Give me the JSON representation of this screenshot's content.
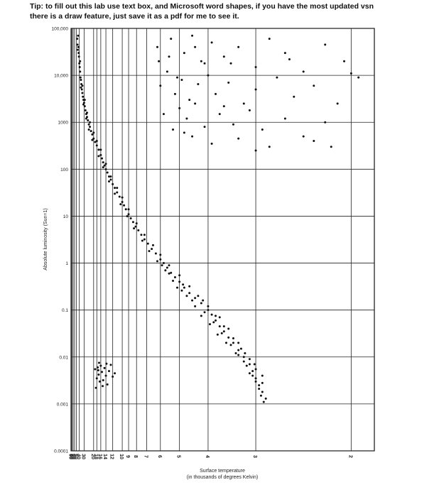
{
  "tip": {
    "line1": "Tip: to fill out this lab use text box, and Microsoft word shapes, if you have the most updated vsn",
    "line2": "there is a draw feature, just save it as a pdf for me to see it."
  },
  "chart_data": {
    "type": "scatter",
    "title": "",
    "ylabel": "Absolute luminosity (Sun=1)",
    "xlabel_line1": "Surface temperature",
    "xlabel_line2": "(in thousands of degrees Kelvin)",
    "y_scale": "log",
    "ylim": [
      0.0001,
      100000
    ],
    "x_scale": "reciprocal (decreasing to the right)",
    "xlim": [
      95,
      1.85
    ],
    "grid": true,
    "y_ticks": [
      {
        "value": 100000,
        "label": "100,000"
      },
      {
        "value": 10000,
        "label": "10,000"
      },
      {
        "value": 1000,
        "label": "1000"
      },
      {
        "value": 100,
        "label": "100"
      },
      {
        "value": 10,
        "label": "10"
      },
      {
        "value": 1,
        "label": "1"
      },
      {
        "value": 0.1,
        "label": "0.1"
      },
      {
        "value": 0.01,
        "label": "0.01"
      },
      {
        "value": 0.001,
        "label": "0.001"
      },
      {
        "value": 0.0001,
        "label": "0.0001"
      }
    ],
    "x_ticks": [
      {
        "value": 90,
        "label": "90"
      },
      {
        "value": 80,
        "label": "80"
      },
      {
        "value": 70,
        "label": "70"
      },
      {
        "value": 60,
        "label": "60"
      },
      {
        "value": 50,
        "label": "50"
      },
      {
        "value": 40,
        "label": "40"
      },
      {
        "value": 30,
        "label": "30"
      },
      {
        "value": 20,
        "label": "20"
      },
      {
        "value": 18,
        "label": "18"
      },
      {
        "value": 16,
        "label": "16"
      },
      {
        "value": 14,
        "label": "14"
      },
      {
        "value": 12,
        "label": "12"
      },
      {
        "value": 10,
        "label": "10"
      },
      {
        "value": 9,
        "label": "9"
      },
      {
        "value": 8,
        "label": "8"
      },
      {
        "value": 7,
        "label": "7"
      },
      {
        "value": 6,
        "label": "6"
      },
      {
        "value": 5,
        "label": "5"
      },
      {
        "value": 4,
        "label": "4"
      },
      {
        "value": 3,
        "label": "3"
      },
      {
        "value": 2,
        "label": "2"
      }
    ],
    "series": [
      {
        "points": [
          [
            47,
            60000
          ],
          [
            46,
            45000
          ],
          [
            45,
            35000
          ],
          [
            44,
            70000
          ],
          [
            42,
            30000
          ],
          [
            41,
            25000
          ],
          [
            40,
            18000
          ],
          [
            39,
            15000
          ],
          [
            38,
            12000
          ],
          [
            37,
            9000
          ],
          [
            36,
            8000
          ],
          [
            35,
            6500
          ],
          [
            34,
            5000
          ],
          [
            33,
            4200
          ],
          [
            32,
            3500
          ],
          [
            31,
            3000
          ],
          [
            30,
            2600
          ],
          [
            29,
            2200
          ],
          [
            28,
            1800
          ],
          [
            27,
            1500
          ],
          [
            26,
            1300
          ],
          [
            25,
            1100
          ],
          [
            24,
            900
          ],
          [
            23,
            800
          ],
          [
            22,
            650
          ],
          [
            21,
            550
          ],
          [
            20,
            450
          ],
          [
            19,
            380
          ],
          [
            18,
            320
          ],
          [
            17,
            260
          ],
          [
            16,
            200
          ],
          [
            15.5,
            170
          ],
          [
            15,
            140
          ],
          [
            14.5,
            120
          ],
          [
            14,
            100
          ],
          [
            13.5,
            85
          ],
          [
            13,
            70
          ],
          [
            12.5,
            60
          ],
          [
            12,
            48
          ],
          [
            11.5,
            40
          ],
          [
            11,
            32
          ],
          [
            10.5,
            26
          ],
          [
            10,
            20
          ],
          [
            9.7,
            17
          ],
          [
            9.4,
            14
          ],
          [
            9,
            11
          ],
          [
            8.7,
            9
          ],
          [
            8.4,
            7.5
          ],
          [
            8.1,
            6
          ],
          [
            7.8,
            5
          ],
          [
            7.5,
            4
          ],
          [
            7.2,
            3.2
          ],
          [
            6.9,
            2.6
          ],
          [
            6.6,
            2
          ],
          [
            6.3,
            1.6
          ],
          [
            6,
            1.2
          ],
          [
            5.8,
            1
          ],
          [
            5.6,
            0.8
          ],
          [
            5.4,
            0.62
          ],
          [
            5.2,
            0.5
          ],
          [
            5,
            0.4
          ],
          [
            4.8,
            0.3
          ],
          [
            4.6,
            0.23
          ],
          [
            4.4,
            0.18
          ],
          [
            4.2,
            0.14
          ],
          [
            4,
            0.1
          ],
          [
            3.9,
            0.08
          ],
          [
            3.8,
            0.06
          ],
          [
            3.7,
            0.045
          ],
          [
            3.6,
            0.035
          ],
          [
            3.5,
            0.026
          ],
          [
            3.4,
            0.02
          ],
          [
            3.3,
            0.014
          ],
          [
            3.2,
            0.01
          ],
          [
            3.1,
            0.007
          ],
          [
            3.05,
            0.005
          ],
          [
            3,
            0.0035
          ],
          [
            2.95,
            0.0025
          ],
          [
            2.9,
            0.0018
          ],
          [
            2.85,
            0.0013
          ],
          [
            43,
            40000
          ],
          [
            38,
            20000
          ],
          [
            33,
            6000
          ],
          [
            29,
            3000
          ],
          [
            26,
            1600
          ],
          [
            23,
            1000
          ],
          [
            20,
            600
          ],
          [
            18,
            400
          ],
          [
            16,
            260
          ],
          [
            14,
            130
          ],
          [
            12.5,
            70
          ],
          [
            11,
            40
          ],
          [
            10,
            25
          ],
          [
            9,
            14
          ],
          [
            8,
            7
          ],
          [
            7.2,
            4
          ],
          [
            6.5,
            2.4
          ],
          [
            6,
            1.5
          ],
          [
            5.5,
            0.9
          ],
          [
            5,
            0.55
          ],
          [
            4.6,
            0.32
          ],
          [
            4.3,
            0.2
          ],
          [
            4,
            0.12
          ],
          [
            3.8,
            0.075
          ],
          [
            3.6,
            0.045
          ],
          [
            3.4,
            0.025
          ],
          [
            3.25,
            0.015
          ],
          [
            3.1,
            0.009
          ],
          [
            3,
            0.0055
          ],
          [
            2.9,
            0.0028
          ],
          [
            36,
            5500
          ],
          [
            31,
            2400
          ],
          [
            27,
            1200
          ],
          [
            24,
            700
          ],
          [
            21,
            420
          ],
          [
            17,
            190
          ],
          [
            15,
            110
          ],
          [
            13,
            55
          ],
          [
            11.5,
            30
          ],
          [
            10.3,
            18
          ],
          [
            9.2,
            10
          ],
          [
            8.3,
            5.5
          ],
          [
            7.4,
            3
          ],
          [
            6.8,
            1.8
          ],
          [
            6.2,
            1.1
          ],
          [
            5.7,
            0.7
          ],
          [
            5.3,
            0.42
          ],
          [
            4.9,
            0.26
          ],
          [
            4.5,
            0.16
          ],
          [
            4.1,
            0.09
          ],
          [
            3.85,
            0.055
          ],
          [
            3.65,
            0.032
          ],
          [
            3.45,
            0.018
          ],
          [
            3.3,
            0.011
          ],
          [
            3.15,
            0.0065
          ],
          [
            3.05,
            0.004
          ],
          [
            2.95,
            0.0021
          ],
          [
            2.88,
            0.0011
          ],
          [
            5.1,
            0.3
          ],
          [
            4.7,
            0.2
          ],
          [
            4.4,
            0.12
          ],
          [
            4.2,
            0.075
          ],
          [
            3.95,
            0.05
          ],
          [
            3.75,
            0.03
          ],
          [
            3.55,
            0.02
          ],
          [
            3.35,
            0.012
          ],
          [
            3.2,
            0.008
          ],
          [
            3.1,
            0.0045
          ],
          [
            3,
            0.003
          ],
          [
            2.92,
            0.0015
          ],
          [
            5.9,
            0.9
          ],
          [
            5.5,
            0.6
          ],
          [
            4.85,
            0.35
          ],
          [
            4.15,
            0.16
          ],
          [
            3.7,
            0.07
          ],
          [
            3.5,
            0.04
          ],
          [
            3.3,
            0.02
          ],
          [
            3.18,
            0.012
          ],
          [
            3.02,
            0.007
          ],
          [
            2.9,
            0.004
          ]
        ]
      },
      {
        "points": [
          [
            6.2,
            40000
          ],
          [
            5.4,
            60000
          ],
          [
            4.8,
            30000
          ],
          [
            4.5,
            70000
          ],
          [
            4.2,
            20000
          ],
          [
            3.9,
            50000
          ],
          [
            3.6,
            25000
          ],
          [
            3.3,
            40000
          ],
          [
            3.0,
            15000
          ],
          [
            2.8,
            60000
          ],
          [
            2.6,
            30000
          ],
          [
            2.4,
            12000
          ],
          [
            2.2,
            45000
          ],
          [
            2.05,
            20000
          ],
          [
            1.95,
            9000
          ],
          [
            6.0,
            6000
          ],
          [
            5.6,
            12000
          ],
          [
            5.2,
            4000
          ],
          [
            4.9,
            8000
          ],
          [
            4.6,
            3000
          ],
          [
            4.3,
            6500
          ],
          [
            4.0,
            10000
          ],
          [
            3.8,
            4000
          ],
          [
            3.5,
            7000
          ],
          [
            3.2,
            2500
          ],
          [
            3.0,
            5000
          ],
          [
            2.7,
            9000
          ],
          [
            2.5,
            3500
          ],
          [
            2.3,
            6000
          ],
          [
            2.1,
            2500
          ],
          [
            5.8,
            1500
          ],
          [
            5.0,
            2000
          ],
          [
            4.7,
            1200
          ],
          [
            4.4,
            2500
          ],
          [
            4.1,
            800
          ],
          [
            3.7,
            1500
          ],
          [
            3.4,
            900
          ],
          [
            3.1,
            1800
          ],
          [
            2.9,
            700
          ],
          [
            2.6,
            1200
          ],
          [
            2.4,
            500
          ],
          [
            2.2,
            1000
          ],
          [
            5.3,
            700
          ],
          [
            4.5,
            500
          ],
          [
            3.9,
            350
          ],
          [
            3.3,
            450
          ],
          [
            2.8,
            300
          ],
          [
            2.3,
            400
          ],
          [
            6.1,
            20000
          ],
          [
            5.5,
            25000
          ],
          [
            4.4,
            40000
          ],
          [
            3.45,
            18000
          ],
          [
            2.55,
            22000
          ],
          [
            2.0,
            11000
          ],
          [
            3.6,
            2200
          ],
          [
            5.1,
            9000
          ],
          [
            4.8,
            600
          ],
          [
            3.0,
            250
          ],
          [
            2.15,
            300
          ],
          [
            4.1,
            18000
          ]
        ]
      },
      {
        "points": [
          [
            19,
            0.0055
          ],
          [
            18,
            0.0035
          ],
          [
            17.5,
            0.006
          ],
          [
            17,
            0.0042
          ],
          [
            16.5,
            0.003
          ],
          [
            16,
            0.0065
          ],
          [
            15.5,
            0.0048
          ],
          [
            15,
            0.0032
          ],
          [
            14.5,
            0.0058
          ],
          [
            14,
            0.004
          ],
          [
            13.5,
            0.0026
          ],
          [
            13,
            0.005
          ],
          [
            12.5,
            0.0068
          ],
          [
            12,
            0.0038
          ],
          [
            11.5,
            0.0045
          ],
          [
            18.5,
            0.0022
          ],
          [
            16.8,
            0.0075
          ],
          [
            15.2,
            0.0024
          ],
          [
            13.8,
            0.0072
          ],
          [
            17.2,
            0.0052
          ]
        ]
      }
    ]
  }
}
